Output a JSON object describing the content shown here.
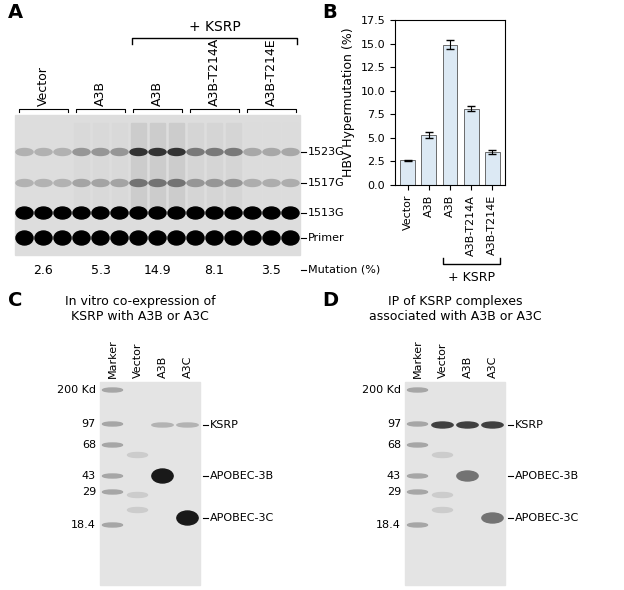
{
  "panel_A": {
    "label": "A",
    "groups": [
      {
        "label": "Vector",
        "mutation": 2.6,
        "with_ksrp": false
      },
      {
        "label": "A3B",
        "mutation": 5.3,
        "with_ksrp": false
      },
      {
        "label": "A3B",
        "mutation": 14.9,
        "with_ksrp": true
      },
      {
        "label": "A3B-T214A",
        "mutation": 8.1,
        "with_ksrp": true
      },
      {
        "label": "A3B-T214E",
        "mutation": 3.5,
        "with_ksrp": true
      }
    ],
    "bracket_label": "+ KSRP",
    "band_labels": [
      "1523G",
      "1517G",
      "1513G",
      "Primer"
    ],
    "row_label": "Mutation (%)"
  },
  "chart_data": {
    "panel": "B",
    "type": "bar",
    "categories": [
      "Vector",
      "A3B",
      "A3B",
      "A3B-T214A",
      "A3B-T214E"
    ],
    "values": [
      2.6,
      5.3,
      14.9,
      8.1,
      3.5
    ],
    "errors": [
      0.05,
      0.35,
      0.45,
      0.3,
      0.2
    ],
    "color": "#dce9f4",
    "y_label": "HBV Hypermutation (%)",
    "ylim": [
      0,
      17.5
    ],
    "yticks": [
      {
        "value": 0,
        "label": "0.0"
      },
      2.5,
      {
        "value": 5,
        "label": "5.0"
      },
      7.5,
      {
        "value": 10,
        "label": "10.0"
      },
      12.5,
      {
        "value": 15,
        "label": "15.0"
      },
      17.5
    ],
    "annotations": [
      {
        "text": "+ KSRP",
        "span": [
          2,
          4
        ]
      }
    ]
  },
  "panel_C": {
    "label": "C",
    "title_lines": [
      "In vitro co-expression of",
      "KSRP with A3B or A3C"
    ],
    "lanes": [
      "Marker",
      "Vector",
      "A3B",
      "A3C"
    ],
    "marker_sizes": [
      "200 Kd",
      "97",
      "68",
      "43",
      "29",
      "18.4"
    ],
    "bands": [
      {
        "label": "KSRP",
        "lanes": [
          "A3B",
          "A3C"
        ]
      },
      {
        "label": "APOBEC-3B",
        "lanes": [
          "A3B"
        ]
      },
      {
        "label": "APOBEC-3C",
        "lanes": [
          "A3C"
        ]
      }
    ]
  },
  "panel_D": {
    "label": "D",
    "title_lines": [
      "IP of KSRP complexes",
      "associated with A3B or A3C"
    ],
    "lanes": [
      "Marker",
      "Vector",
      "A3B",
      "A3C"
    ],
    "marker_sizes": [
      "200 Kd",
      "97",
      "68",
      "43",
      "29",
      "18.4"
    ],
    "bands": [
      {
        "label": "KSRP",
        "lanes": [
          "Vector",
          "A3B",
          "A3C"
        ]
      },
      {
        "label": "APOBEC-3B",
        "lanes": [
          "A3B"
        ]
      },
      {
        "label": "APOBEC-3C",
        "lanes": [
          "A3C"
        ]
      }
    ]
  }
}
